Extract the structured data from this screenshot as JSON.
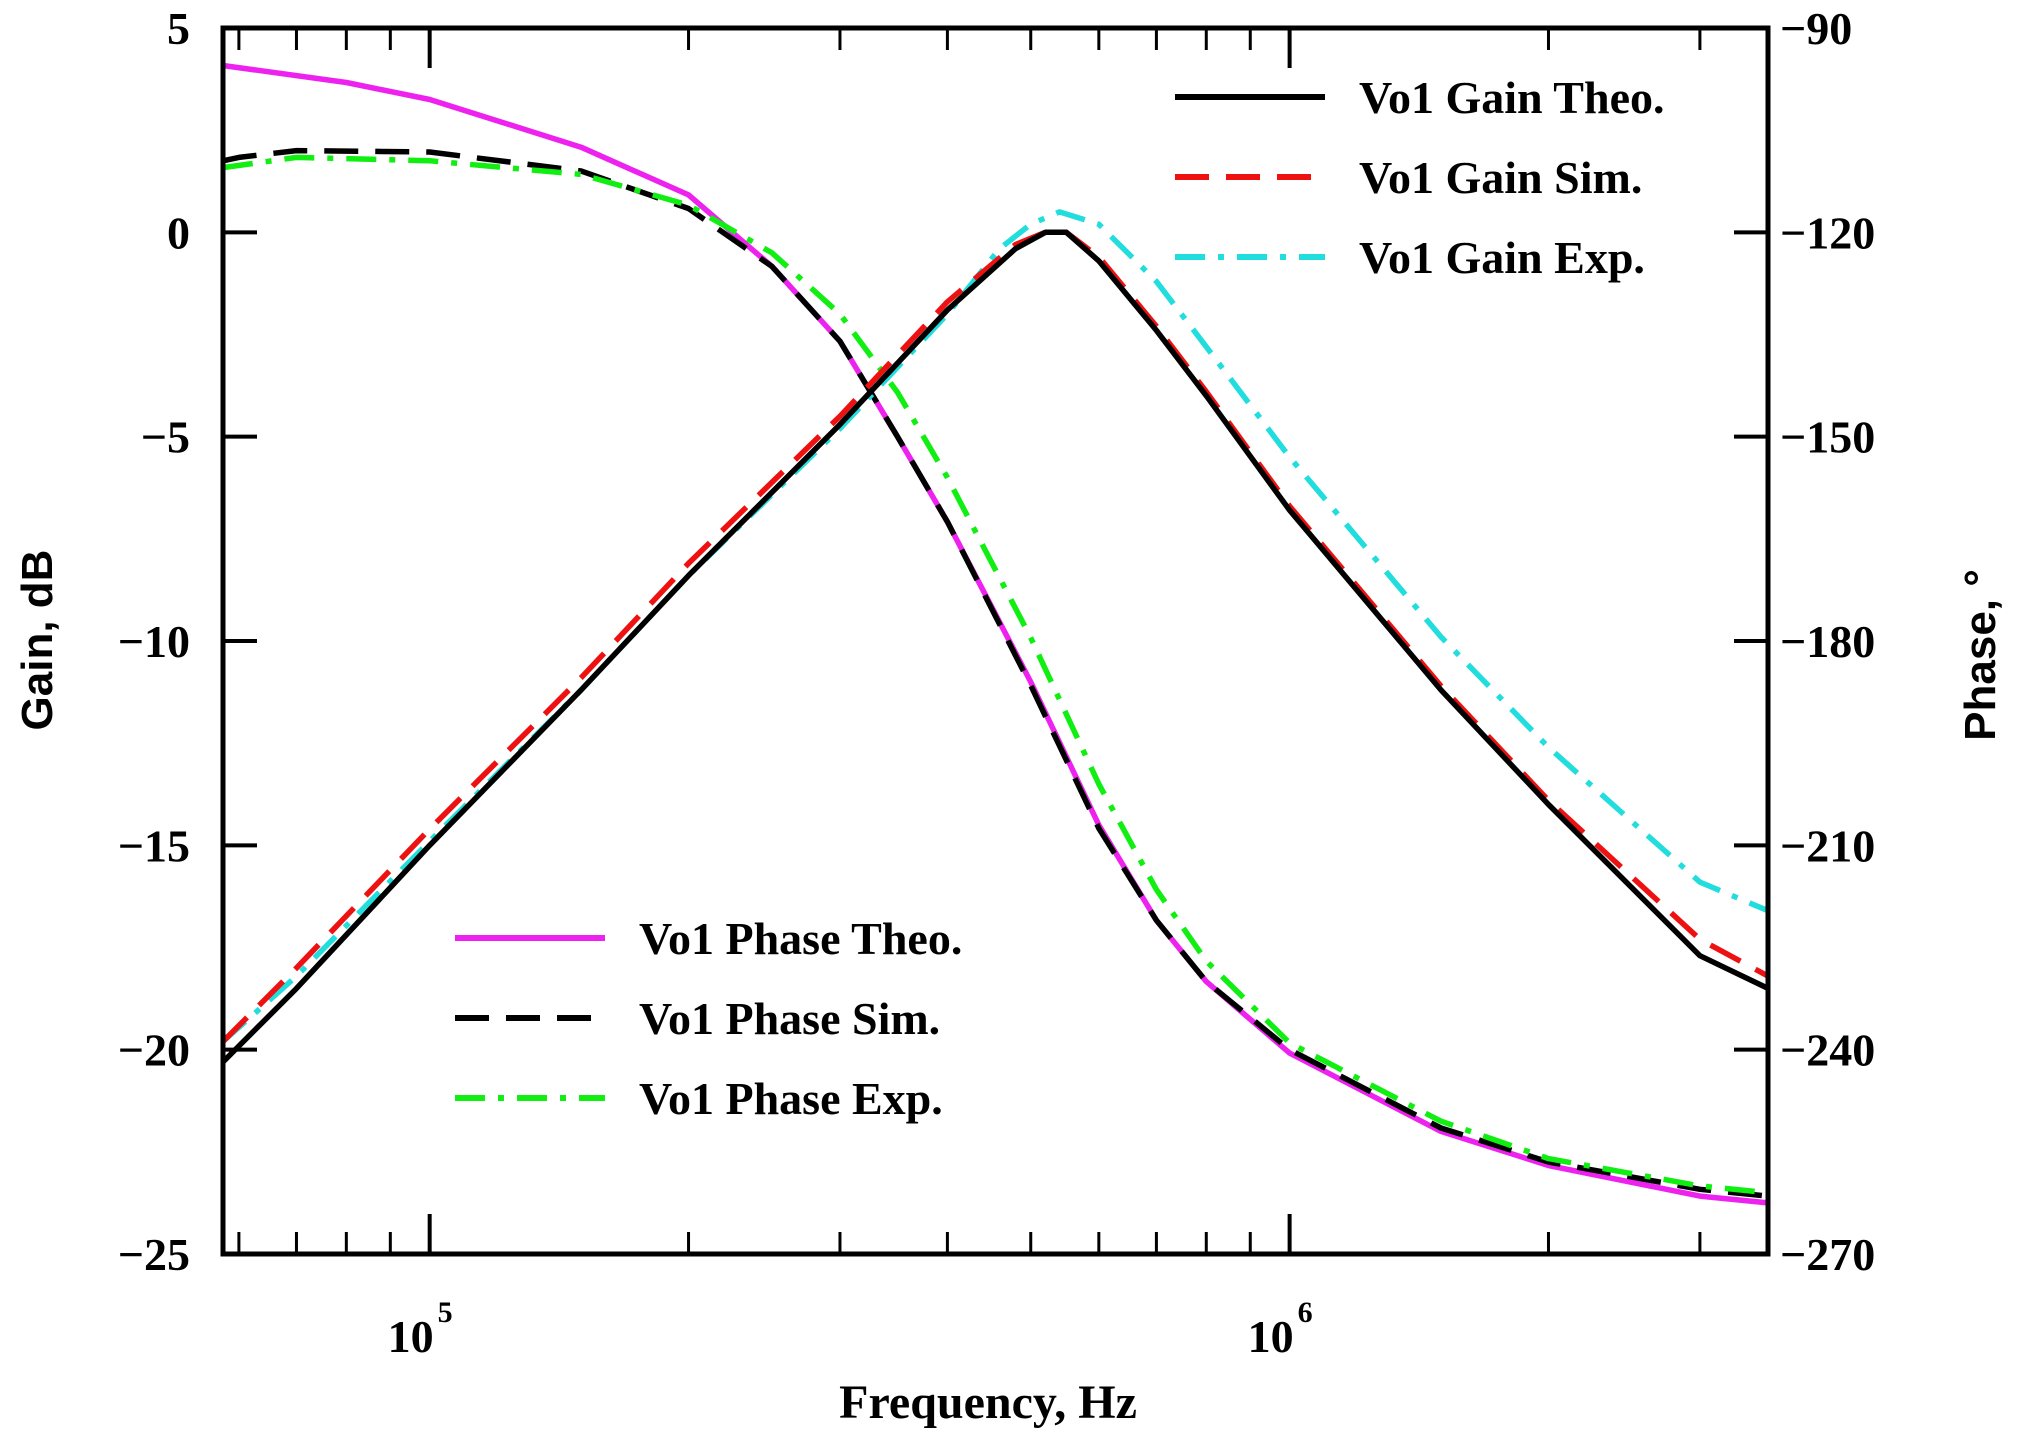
{
  "chart_data": {
    "type": "line",
    "title": "",
    "xlabel": "Frequency, Hz",
    "ylabel_left": "Gain, dB",
    "ylabel_right": "Phase, °",
    "xscale": "log",
    "xlim": [
      57500,
      3600000
    ],
    "ylim_left": [
      -25,
      5
    ],
    "ylim_right": [
      -270,
      -90
    ],
    "left_ticks": [
      5,
      0,
      -5,
      -10,
      -15,
      -20,
      -25
    ],
    "left_tick_labels": [
      "5",
      "0",
      "−5",
      "−10",
      "−15",
      "−20",
      "−25"
    ],
    "right_ticks": [
      -90,
      -120,
      -150,
      -180,
      -210,
      -240,
      -270
    ],
    "right_tick_labels": [
      "−90",
      "−120",
      "−150",
      "−180",
      "−210",
      "−240",
      "−270"
    ],
    "x_tick_labels": [
      {
        "value": 100000,
        "base": "10",
        "exponent": "5"
      },
      {
        "value": 1000000,
        "base": "10",
        "exponent": "6"
      }
    ],
    "x_minor_ticks": [
      60000,
      70000,
      80000,
      90000,
      200000,
      300000,
      400000,
      500000,
      600000,
      700000,
      800000,
      900000,
      2000000,
      3000000
    ],
    "legend_gain_position": "top-right",
    "legend_phase_position": "bottom-left",
    "series": [
      {
        "name": "Vo1 Gain Theo.",
        "axis": "left",
        "color": "#000000",
        "dash": "solid",
        "legend": "gain",
        "x": [
          57500,
          70000,
          100000,
          150000,
          200000,
          300000,
          400000,
          480000,
          520000,
          550000,
          600000,
          700000,
          800000,
          1000000,
          1500000,
          2000000,
          3000000,
          3600000
        ],
        "y": [
          -20.3,
          -18.5,
          -15.0,
          -11.2,
          -8.4,
          -4.7,
          -1.9,
          -0.4,
          0.0,
          0.0,
          -0.7,
          -2.4,
          -4.0,
          -6.8,
          -11.2,
          -14.0,
          -17.7,
          -18.5
        ]
      },
      {
        "name": "Vo1 Gain Sim.",
        "axis": "left",
        "color": "#ee1111",
        "dash": "long",
        "legend": "gain",
        "x": [
          57500,
          70000,
          100000,
          150000,
          200000,
          300000,
          400000,
          480000,
          520000,
          550000,
          600000,
          700000,
          800000,
          1000000,
          1500000,
          2000000,
          3000000,
          3600000
        ],
        "y": [
          -19.8,
          -18.0,
          -14.6,
          -10.9,
          -8.1,
          -4.5,
          -1.7,
          -0.3,
          0.0,
          0.0,
          -0.6,
          -2.3,
          -3.9,
          -6.7,
          -11.1,
          -13.9,
          -17.3,
          -18.2
        ]
      },
      {
        "name": "Vo1 Gain Exp.",
        "axis": "left",
        "color": "#22dddd",
        "dash": "dashdot",
        "legend": "gain",
        "x": [
          57500,
          70000,
          100000,
          150000,
          200000,
          300000,
          400000,
          460000,
          500000,
          540000,
          600000,
          700000,
          800000,
          1000000,
          1500000,
          2000000,
          3000000,
          3600000
        ],
        "y": [
          -19.8,
          -18.2,
          -14.9,
          -11.2,
          -8.4,
          -4.8,
          -2.0,
          -0.4,
          0.2,
          0.5,
          0.2,
          -1.2,
          -2.8,
          -5.5,
          -9.9,
          -12.6,
          -15.9,
          -16.6
        ]
      },
      {
        "name": "Vo1 Phase Theo.",
        "axis": "right",
        "color": "#ee22ee",
        "dash": "solid",
        "legend": "phase",
        "x": [
          57500,
          80000,
          100000,
          150000,
          200000,
          250000,
          300000,
          350000,
          400000,
          500000,
          600000,
          700000,
          800000,
          1000000,
          1500000,
          2000000,
          3000000,
          3600000
        ],
        "y": [
          -95.5,
          -98.0,
          -100.5,
          -107.5,
          -114.5,
          -125.0,
          -136.0,
          -150.0,
          -162.5,
          -186.0,
          -207.0,
          -221.0,
          -230.0,
          -240.5,
          -252.0,
          -257.0,
          -261.5,
          -262.5
        ]
      },
      {
        "name": "Vo1 Phase Sim.",
        "axis": "right",
        "color": "#000000",
        "dash": "long",
        "legend": "phase",
        "x": [
          57500,
          60000,
          70000,
          100000,
          150000,
          200000,
          250000,
          300000,
          350000,
          400000,
          500000,
          600000,
          700000,
          800000,
          1000000,
          1500000,
          2000000,
          3000000,
          3600000
        ],
        "y": [
          -109.5,
          -109.0,
          -108.0,
          -108.2,
          -111.0,
          -116.5,
          -125.0,
          -136.0,
          -150.0,
          -162.5,
          -186.5,
          -207.5,
          -221.0,
          -230.0,
          -240.0,
          -251.5,
          -256.5,
          -260.5,
          -261.5
        ]
      },
      {
        "name": "Vo1 Phase Exp.",
        "axis": "right",
        "color": "#11ee11",
        "dash": "dashdot",
        "legend": "phase",
        "x": [
          57500,
          70000,
          100000,
          150000,
          200000,
          250000,
          300000,
          350000,
          400000,
          500000,
          600000,
          700000,
          800000,
          1000000,
          1500000,
          2000000,
          3000000,
          3600000
        ],
        "y": [
          -110.5,
          -109.0,
          -109.5,
          -111.5,
          -116.0,
          -123.0,
          -132.0,
          -143.5,
          -156.0,
          -179.5,
          -201.0,
          -216.5,
          -227.0,
          -239.0,
          -250.5,
          -256.0,
          -260.0,
          -261.0
        ]
      }
    ]
  }
}
